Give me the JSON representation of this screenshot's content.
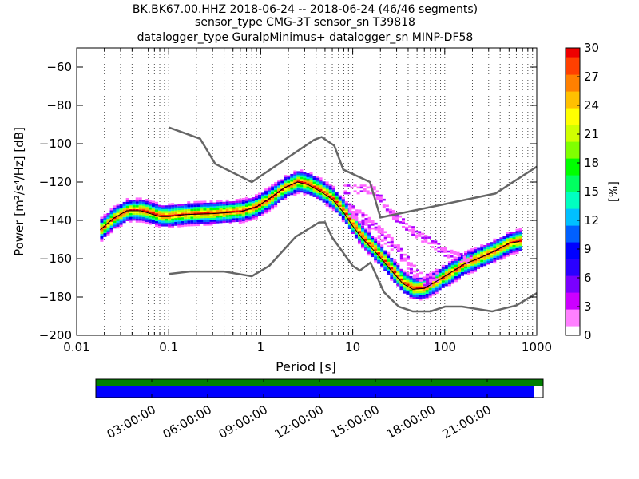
{
  "chart_data": {
    "type": "heatmap",
    "title_lines": [
      "BK.BK67.00.HHZ   2018-06-24 -- 2018-06-24  (46/46 segments)",
      "sensor_type CMG-3T sensor_sn T39818",
      "datalogger_type GuralpMinimus+ datalogger_sn MINP-DF58"
    ],
    "xlabel": "Period [s]",
    "ylabel": "Power [m²/s⁴/Hz] [dB]",
    "x_scale": "log",
    "xlim": [
      0.01,
      1000
    ],
    "ylim": [
      -200,
      -50
    ],
    "x_ticks": [
      {
        "value": 0.01,
        "label": "0.01"
      },
      {
        "value": 0.1,
        "label": "0.1"
      },
      {
        "value": 1,
        "label": "1"
      },
      {
        "value": 10,
        "label": "10"
      },
      {
        "value": 100,
        "label": "100"
      },
      {
        "value": 1000,
        "label": "1000"
      }
    ],
    "y_ticks": [
      {
        "value": -60,
        "label": "−60"
      },
      {
        "value": -80,
        "label": "−80"
      },
      {
        "value": -100,
        "label": "−100"
      },
      {
        "value": -120,
        "label": "−120"
      },
      {
        "value": -140,
        "label": "−140"
      },
      {
        "value": -160,
        "label": "−160"
      },
      {
        "value": -180,
        "label": "−180"
      },
      {
        "value": -200,
        "label": "−200"
      }
    ],
    "grid": "dotted, vertical lines at log-decade subdivisions",
    "colorbar": {
      "label": "[%]",
      "range": [
        0,
        30
      ],
      "ticks": [
        {
          "value": 0,
          "label": "0"
        },
        {
          "value": 3,
          "label": "3"
        },
        {
          "value": 6,
          "label": "6"
        },
        {
          "value": 9,
          "label": "9"
        },
        {
          "value": 12,
          "label": "12"
        },
        {
          "value": 15,
          "label": "15"
        },
        {
          "value": 18,
          "label": "18"
        },
        {
          "value": 21,
          "label": "21"
        },
        {
          "value": 24,
          "label": "24"
        },
        {
          "value": 27,
          "label": "27"
        },
        {
          "value": 30,
          "label": "30"
        }
      ],
      "colors": [
        "#ffffff",
        "#ff66ff",
        "#aa00ff",
        "#4400ff",
        "#0000ff",
        "#0066ff",
        "#00ccff",
        "#00ff99",
        "#00ff00",
        "#aaff00",
        "#ffff00",
        "#ffaa00",
        "#ff5500",
        "#ee0000"
      ]
    },
    "nhnm": {
      "color": "#666666",
      "points": [
        [
          0.1,
          -91.5
        ],
        [
          0.22,
          -97.4
        ],
        [
          0.32,
          -110.5
        ],
        [
          0.8,
          -120
        ],
        [
          3.8,
          -98
        ],
        [
          4.6,
          -96.5
        ],
        [
          6.3,
          -101
        ],
        [
          7.9,
          -113.5
        ],
        [
          15.4,
          -120
        ],
        [
          20,
          -138.5
        ],
        [
          354.8,
          -126
        ],
        [
          1000,
          -112
        ]
      ]
    },
    "nlnm": {
      "color": "#666666",
      "points": [
        [
          0.1,
          -168
        ],
        [
          0.17,
          -166.7
        ],
        [
          0.4,
          -166.7
        ],
        [
          0.8,
          -169.2
        ],
        [
          1.24,
          -163.7
        ],
        [
          2.4,
          -148.6
        ],
        [
          4.3,
          -141.1
        ],
        [
          5,
          -141
        ],
        [
          6,
          -149
        ],
        [
          10,
          -163.8
        ],
        [
          12,
          -166.2
        ],
        [
          15.6,
          -162.1
        ],
        [
          21.9,
          -177.5
        ],
        [
          31.6,
          -185
        ],
        [
          45,
          -187.5
        ],
        [
          70,
          -187.5
        ],
        [
          101,
          -185
        ],
        [
          154,
          -185
        ],
        [
          328,
          -187.5
        ],
        [
          600,
          -184.4
        ],
        [
          1000,
          -178
        ]
      ]
    },
    "mode": {
      "color": "#000000",
      "points": [
        [
          0.018,
          -145
        ],
        [
          0.025,
          -139
        ],
        [
          0.035,
          -135
        ],
        [
          0.05,
          -135
        ],
        [
          0.08,
          -138
        ],
        [
          0.1,
          -138
        ],
        [
          0.15,
          -137
        ],
        [
          0.3,
          -136.5
        ],
        [
          0.6,
          -135.5
        ],
        [
          0.9,
          -133
        ],
        [
          1.3,
          -128
        ],
        [
          1.8,
          -123
        ],
        [
          2.5,
          -120
        ],
        [
          3.3,
          -121.5
        ],
        [
          4.5,
          -125
        ],
        [
          6,
          -129
        ],
        [
          8,
          -136
        ],
        [
          10,
          -143
        ],
        [
          13,
          -150
        ],
        [
          18,
          -157
        ],
        [
          25,
          -165
        ],
        [
          35,
          -173
        ],
        [
          45,
          -176
        ],
        [
          60,
          -175.5
        ],
        [
          80,
          -172
        ],
        [
          110,
          -168
        ],
        [
          160,
          -163
        ],
        [
          230,
          -160
        ],
        [
          350,
          -156
        ],
        [
          500,
          -152
        ],
        [
          650,
          -151
        ]
      ]
    },
    "psd_cloud": [
      {
        "label": "main",
        "spread": 4,
        "points": [
          [
            0.018,
            -145
          ],
          [
            0.025,
            -139
          ],
          [
            0.035,
            -135
          ],
          [
            0.05,
            -135
          ],
          [
            0.08,
            -138
          ],
          [
            0.1,
            -138
          ],
          [
            0.15,
            -137
          ],
          [
            0.3,
            -136.5
          ],
          [
            0.6,
            -135.5
          ],
          [
            0.9,
            -133
          ],
          [
            1.3,
            -128
          ],
          [
            1.8,
            -123
          ],
          [
            2.5,
            -120
          ],
          [
            3.3,
            -121.5
          ],
          [
            4.5,
            -125
          ],
          [
            6,
            -129
          ],
          [
            8,
            -136
          ],
          [
            10,
            -143
          ],
          [
            13,
            -150
          ],
          [
            18,
            -157
          ],
          [
            25,
            -165
          ],
          [
            35,
            -173
          ],
          [
            45,
            -176
          ],
          [
            60,
            -175.5
          ],
          [
            80,
            -172
          ],
          [
            110,
            -168
          ],
          [
            160,
            -163
          ],
          [
            230,
            -160
          ],
          [
            350,
            -156
          ],
          [
            500,
            -152
          ],
          [
            650,
            -151
          ]
        ]
      },
      {
        "label": "outlier",
        "spread": 1.5,
        "points": [
          [
            8,
            -124
          ],
          [
            12,
            -124
          ],
          [
            16,
            -124
          ],
          [
            20,
            -130
          ],
          [
            25,
            -136
          ],
          [
            35,
            -142
          ],
          [
            50,
            -148
          ],
          [
            70,
            -152
          ],
          [
            100,
            -157
          ],
          [
            150,
            -160
          ],
          [
            200,
            -161
          ]
        ]
      },
      {
        "label": "outlier2",
        "spread": 2,
        "points": [
          [
            9,
            -135
          ],
          [
            13,
            -140
          ],
          [
            18,
            -146
          ],
          [
            25,
            -152
          ],
          [
            35,
            -160
          ],
          [
            45,
            -167
          ],
          [
            60,
            -172
          ],
          [
            80,
            -170
          ]
        ]
      }
    ],
    "time_bar": {
      "tick_labels": [
        "03:00:00",
        "06:00:00",
        "09:00:00",
        "12:00:00",
        "15:00:00",
        "18:00:00",
        "21:00:00"
      ],
      "tick_hours": [
        3,
        6,
        9,
        12,
        15,
        18,
        21
      ],
      "range_hours": [
        0,
        24
      ],
      "coverage_color": "#0000ff",
      "gaps_color": "#008000",
      "coverage_end_hours": 23.5
    }
  }
}
